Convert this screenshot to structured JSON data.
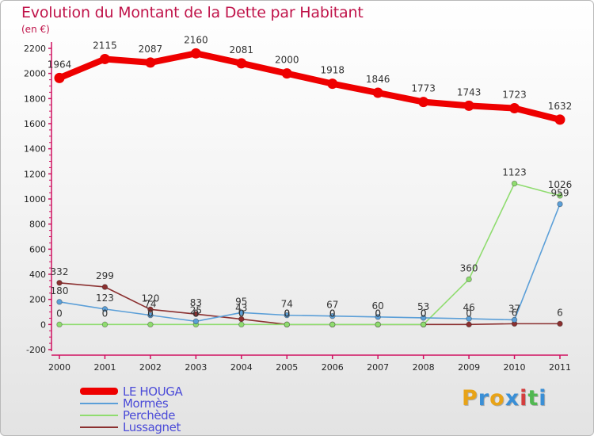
{
  "title": "Evolution du Montant de la Dette par Habitant",
  "subtitle": "(en €)",
  "logo": {
    "text": "Proxiti",
    "letter_colors": [
      "#e8a317",
      "#3a8fd6",
      "#e8a317",
      "#3a8fd6",
      "#d43d3d",
      "#52b852",
      "#3a8fd6"
    ]
  },
  "chart_data": {
    "type": "line",
    "title": "Evolution du Montant de la Dette par Habitant",
    "subtitle": "(en €)",
    "x": [
      "2000",
      "2001",
      "2002",
      "2003",
      "2004",
      "2005",
      "2006",
      "2007",
      "2008",
      "2009",
      "2010",
      "2011"
    ],
    "ylim": [
      -200,
      2200
    ],
    "yticks": [
      "-200",
      "0",
      "200",
      "400",
      "600",
      "800",
      "1000",
      "1200",
      "1400",
      "1600",
      "1800",
      "2000",
      "2200"
    ],
    "grid": false,
    "legend_position": "bottom-left",
    "series": [
      {
        "name": "LE HOUGA",
        "color": "#ee0000",
        "values": [
          1964,
          2115,
          2087,
          2160,
          2081,
          2000,
          1918,
          1846,
          1773,
          1743,
          1723,
          1632
        ],
        "labels": [
          "1964",
          "2115",
          "2087",
          "2160",
          "2081",
          "2000",
          "1918",
          "1846",
          "1773",
          "1743",
          "1723",
          "1632"
        ]
      },
      {
        "name": "Mormès",
        "color": "#5b9fd8",
        "values": [
          180,
          123,
          74,
          25,
          95,
          74,
          67,
          60,
          53,
          46,
          37,
          959
        ],
        "labels": [
          "180",
          "123",
          "74",
          "25",
          "95",
          "74",
          "67",
          "60",
          "53",
          "46",
          "37",
          "959"
        ]
      },
      {
        "name": "Perchède",
        "color": "#8fdc6f",
        "values": [
          0,
          0,
          0,
          0,
          0,
          0,
          0,
          0,
          0,
          360,
          1123,
          1026
        ],
        "labels": [
          "0",
          "0",
          "0",
          "0",
          "0",
          "0",
          "0",
          "0",
          "0",
          "360",
          "1123",
          "1026"
        ]
      },
      {
        "name": "Lussagnet",
        "color": "#8b3030",
        "values": [
          332,
          299,
          120,
          83,
          43,
          0,
          0,
          0,
          0,
          0,
          6,
          6
        ],
        "labels": [
          "332",
          "299",
          "120",
          "83",
          "43",
          "0",
          "0",
          "0",
          "0",
          "0",
          "6",
          "6"
        ]
      }
    ]
  }
}
